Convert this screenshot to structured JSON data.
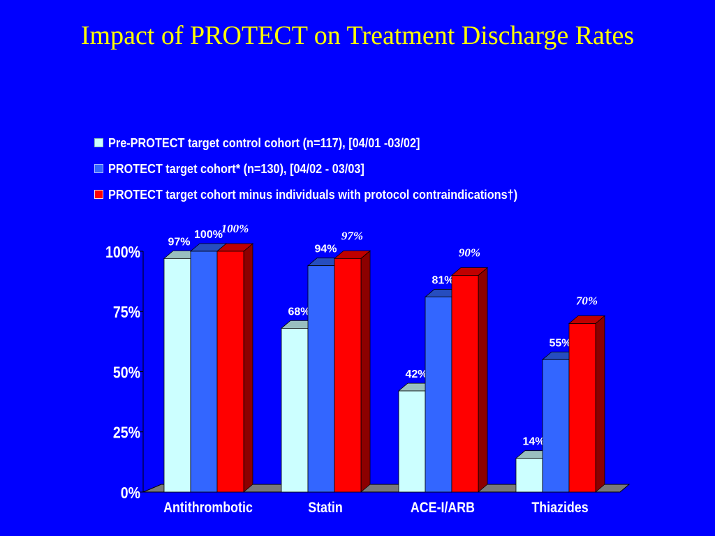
{
  "title": "Impact of PROTECT on Treatment Discharge Rates",
  "colors": {
    "background": "#0000ff",
    "title": "#ffff00",
    "text": "#ffffff"
  },
  "chart_data": {
    "type": "bar",
    "categories": [
      "Antithrombotic",
      "Statin",
      "ACE-I/ARB",
      "Thiazides"
    ],
    "series": [
      {
        "name": "Pre-PROTECT target control cohort (n=117), [04/01 -03/02]",
        "values": [
          97,
          68,
          42,
          14
        ],
        "labels": [
          "97%",
          "68%",
          "42%",
          "14%"
        ],
        "color": "#ccffff"
      },
      {
        "name": "PROTECT target cohort* (n=130), [04/02 - 03/03]",
        "values": [
          100,
          94,
          81,
          55
        ],
        "labels": [
          "100%",
          "94%",
          "81%",
          "55%"
        ],
        "color": "#3366ff"
      },
      {
        "name": "PROTECT target cohort minus individuals with protocol contraindications†)",
        "values": [
          100,
          97,
          90,
          70
        ],
        "labels": [
          "100%",
          "97%",
          "90%",
          "70%"
        ],
        "color": "#ff0000"
      }
    ],
    "ylim": [
      0,
      100
    ],
    "yticks": [
      "0%",
      "25%",
      "50%",
      "75%",
      "100%"
    ],
    "legend": "top",
    "grid": false,
    "style": "3d"
  }
}
